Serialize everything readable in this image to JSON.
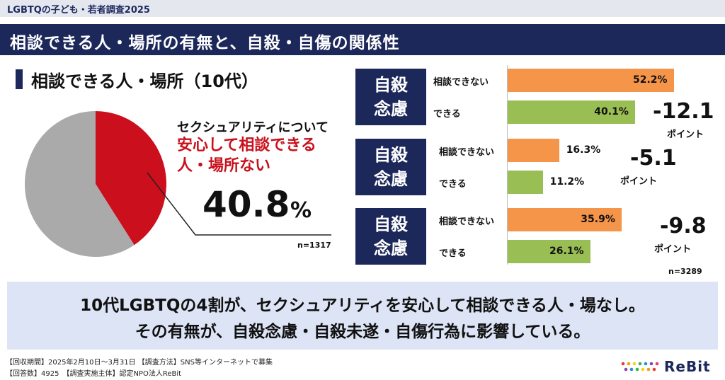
{
  "header": {
    "survey_title": "LGBTQの子ども・若者調査2025",
    "main_title": "相談できる人・場所の有無と、自殺・自傷の関係性"
  },
  "left": {
    "subtitle": "相談できる人・場所（10代）",
    "callout_line1": "セクシュアリティについて",
    "callout_line2": "安心して相談できる人・場所ない",
    "value": "40.8",
    "unit": "%",
    "n": "n=1317",
    "colors": {
      "highlight": "#cc0f1c",
      "rest": "#aaaaaa"
    }
  },
  "right": {
    "n": "n=3289",
    "colors": {
      "cannot": "#f5954a",
      "can": "#99be53",
      "label_bg": "#1c275a"
    }
  },
  "chart_data": [
    {
      "type": "pie",
      "title": "相談できる人・場所（10代）",
      "slices": [
        {
          "label": "セクシュアリティについて安心して相談できる人・場所ない",
          "value": 40.8
        },
        {
          "label": "",
          "value": 59.2
        }
      ]
    },
    {
      "type": "bar",
      "orientation": "horizontal",
      "categories": [
        "相談できない",
        "できる"
      ],
      "groups": [
        {
          "label": "自殺念慮",
          "values": [
            52.2,
            40.1
          ],
          "labels": [
            "52.2%",
            "40.1%"
          ],
          "diff": "-12.1",
          "diff_unit": "ポイント"
        },
        {
          "label": "自殺念慮",
          "values": [
            16.3,
            11.2
          ],
          "labels": [
            "16.3%",
            "11.2%"
          ],
          "diff": "-5.1",
          "diff_unit": "ポイント"
        },
        {
          "label": "自殺念慮",
          "values": [
            35.9,
            26.1
          ],
          "labels": [
            "35.9%",
            "26.1%"
          ],
          "diff": "-9.8",
          "diff_unit": "ポイント"
        }
      ]
    }
  ],
  "summary": {
    "line1": "10代LGBTQの4割が、セクシュアリティを安心して相談できる人・場なし。",
    "line2": "その有無が、自殺念慮・自殺未遂・自傷行為に影響している。"
  },
  "footer": {
    "line1": "【回収期間】2025年2月10日〜3月31日 【調査方法】SNS等インターネットで募集",
    "line2": "【回答数】4925　【調査実施主体】認定NPO法人ReBit",
    "logo_text": "ReBit"
  }
}
